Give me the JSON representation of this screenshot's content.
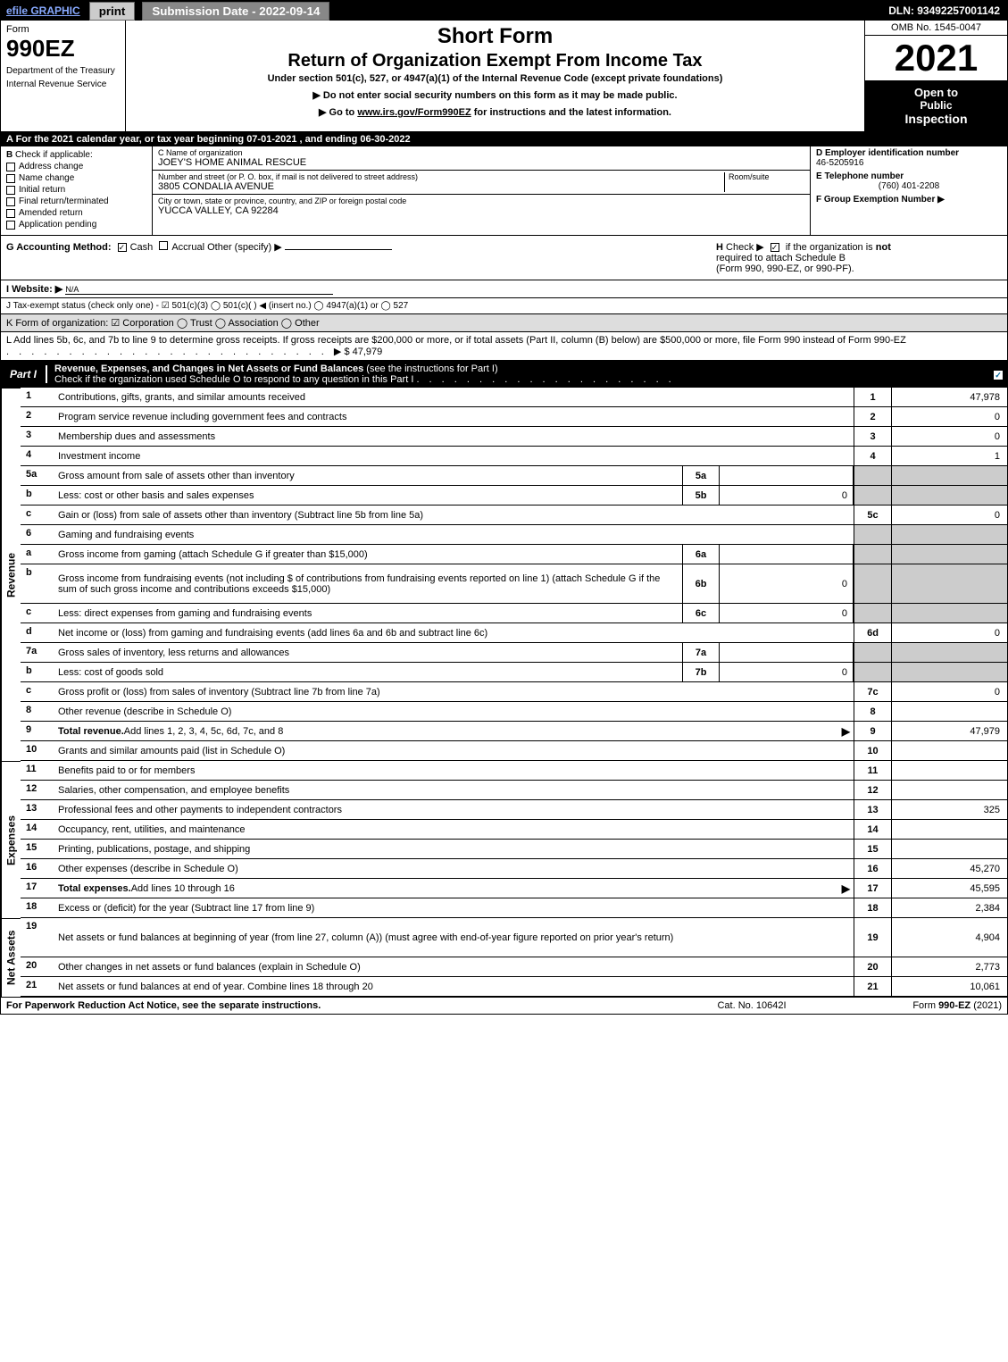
{
  "topbar": {
    "efile": "efile GRAPHIC",
    "print": "print",
    "submission": "Submission Date - 2022-09-14",
    "dln": "DLN: 93492257001142"
  },
  "header": {
    "form_label": "Form",
    "form_num": "990EZ",
    "dept1": "Department of the Treasury",
    "dept2": "Internal Revenue Service",
    "short_form": "Short Form",
    "title": "Return of Organization Exempt From Income Tax",
    "subtitle": "Under section 501(c), 527, or 4947(a)(1) of the Internal Revenue Code (except private foundations)",
    "instr1": "▶ Do not enter social security numbers on this form as it may be made public.",
    "instr2a": "▶ Go to ",
    "instr2_link": "www.irs.gov/Form990EZ",
    "instr2b": " for instructions and the latest information.",
    "omb": "OMB No. 1545-0047",
    "year": "2021",
    "open1": "Open to",
    "open2": "Public",
    "open3": "Inspection"
  },
  "section_a": "A  For the 2021 calendar year, or tax year beginning 07-01-2021 , and ending 06-30-2022",
  "section_b": {
    "label": "B",
    "check_label": "Check if applicable:",
    "items": [
      "Address change",
      "Name change",
      "Initial return",
      "Final return/terminated",
      "Amended return",
      "Application pending"
    ]
  },
  "section_c": {
    "name_label": "C Name of organization",
    "name": "JOEY'S HOME ANIMAL RESCUE",
    "street_label": "Number and street (or P. O. box, if mail is not delivered to street address)",
    "room_label": "Room/suite",
    "street": "3805 CONDALIA AVENUE",
    "city_label": "City or town, state or province, country, and ZIP or foreign postal code",
    "city": "YUCCA VALLEY, CA  92284"
  },
  "section_d": {
    "ein_label": "D Employer identification number",
    "ein": "46-5205916",
    "phone_label": "E Telephone number",
    "phone": "(760) 401-2208",
    "group_label": "F Group Exemption Number  ▶"
  },
  "section_g": {
    "prefix": "G Accounting Method:",
    "cash": "Cash",
    "accrual": "Accrual",
    "other": "Other (specify) ▶"
  },
  "section_h": {
    "prefix": "H",
    "text1": "Check ▶",
    "text2": "if the organization is",
    "text3": "not",
    "text4": "required to attach Schedule B",
    "text5": "(Form 990, 990-EZ, or 990-PF)."
  },
  "section_i": {
    "prefix": "I Website: ▶",
    "val": "N/A"
  },
  "section_j": "J Tax-exempt status (check only one) - ☑ 501(c)(3)  ◯ 501(c)(  ) ◀ (insert no.)  ◯ 4947(a)(1) or  ◯ 527",
  "section_k": "K Form of organization:  ☑ Corporation  ◯ Trust  ◯ Association  ◯ Other",
  "section_l": {
    "text": "L Add lines 5b, 6c, and 7b to line 9 to determine gross receipts. If gross receipts are $200,000 or more, or if total assets (Part II, column (B) below) are $500,000 or more, file Form 990 instead of Form 990-EZ",
    "val": "▶ $ 47,979"
  },
  "part1": {
    "label": "Part I",
    "title_bold": "Revenue, Expenses, and Changes in Net Assets or Fund Balances",
    "title_rest": " (see the instructions for Part I)",
    "check_text": "Check if the organization used Schedule O to respond to any question in this Part I"
  },
  "sidebar": {
    "revenue": "Revenue",
    "expenses": "Expenses",
    "netassets": "Net Assets"
  },
  "rows": [
    {
      "n": "1",
      "desc": "Contributions, gifts, grants, and similar amounts received",
      "rn": "1",
      "rv": "47,978"
    },
    {
      "n": "2",
      "desc": "Program service revenue including government fees and contracts",
      "rn": "2",
      "rv": "0"
    },
    {
      "n": "3",
      "desc": "Membership dues and assessments",
      "rn": "3",
      "rv": "0"
    },
    {
      "n": "4",
      "desc": "Investment income",
      "rn": "4",
      "rv": "1"
    },
    {
      "n": "5a",
      "desc": "Gross amount from sale of assets other than inventory",
      "sn": "5a",
      "sv": "",
      "shaded": true
    },
    {
      "n": "b",
      "desc": "Less: cost or other basis and sales expenses",
      "sn": "5b",
      "sv": "0",
      "shaded": true
    },
    {
      "n": "c",
      "desc": "Gain or (loss) from sale of assets other than inventory (Subtract line 5b from line 5a)",
      "rn": "5c",
      "rv": "0"
    },
    {
      "n": "6",
      "desc": "Gaming and fundraising events",
      "shaded_all": true
    },
    {
      "n": "a",
      "desc": "Gross income from gaming (attach Schedule G if greater than $15,000)",
      "sn": "6a",
      "sv": "",
      "shaded": true
    },
    {
      "n": "b",
      "desc": "Gross income from fundraising events (not including $                     of contributions from fundraising events reported on line 1) (attach Schedule G if the sum of such gross income and contributions exceeds $15,000)",
      "sn": "6b",
      "sv": "0",
      "shaded": true,
      "tall": true
    },
    {
      "n": "c",
      "desc": "Less: direct expenses from gaming and fundraising events",
      "sn": "6c",
      "sv": "0",
      "shaded": true
    },
    {
      "n": "d",
      "desc": "Net income or (loss) from gaming and fundraising events (add lines 6a and 6b and subtract line 6c)",
      "rn": "6d",
      "rv": "0"
    },
    {
      "n": "7a",
      "desc": "Gross sales of inventory, less returns and allowances",
      "sn": "7a",
      "sv": "",
      "shaded": true
    },
    {
      "n": "b",
      "desc": "Less: cost of goods sold",
      "sn": "7b",
      "sv": "0",
      "shaded": true
    },
    {
      "n": "c",
      "desc": "Gross profit or (loss) from sales of inventory (Subtract line 7b from line 7a)",
      "rn": "7c",
      "rv": "0"
    },
    {
      "n": "8",
      "desc": "Other revenue (describe in Schedule O)",
      "rn": "8",
      "rv": ""
    },
    {
      "n": "9",
      "desc": "Total revenue. Add lines 1, 2, 3, 4, 5c, 6d, 7c, and 8",
      "rn": "9",
      "rv": "47,979",
      "arrow": true,
      "bold": true
    }
  ],
  "expense_rows": [
    {
      "n": "10",
      "desc": "Grants and similar amounts paid (list in Schedule O)",
      "rn": "10",
      "rv": ""
    },
    {
      "n": "11",
      "desc": "Benefits paid to or for members",
      "rn": "11",
      "rv": ""
    },
    {
      "n": "12",
      "desc": "Salaries, other compensation, and employee benefits",
      "rn": "12",
      "rv": ""
    },
    {
      "n": "13",
      "desc": "Professional fees and other payments to independent contractors",
      "rn": "13",
      "rv": "325"
    },
    {
      "n": "14",
      "desc": "Occupancy, rent, utilities, and maintenance",
      "rn": "14",
      "rv": ""
    },
    {
      "n": "15",
      "desc": "Printing, publications, postage, and shipping",
      "rn": "15",
      "rv": ""
    },
    {
      "n": "16",
      "desc": "Other expenses (describe in Schedule O)",
      "rn": "16",
      "rv": "45,270"
    },
    {
      "n": "17",
      "desc": "Total expenses. Add lines 10 through 16",
      "rn": "17",
      "rv": "45,595",
      "arrow": true,
      "bold": true
    }
  ],
  "netasset_rows": [
    {
      "n": "18",
      "desc": "Excess or (deficit) for the year (Subtract line 17 from line 9)",
      "rn": "18",
      "rv": "2,384"
    },
    {
      "n": "19",
      "desc": "Net assets or fund balances at beginning of year (from line 27, column (A)) (must agree with end-of-year figure reported on prior year's return)",
      "rn": "19",
      "rv": "4,904",
      "tall": true
    },
    {
      "n": "20",
      "desc": "Other changes in net assets or fund balances (explain in Schedule O)",
      "rn": "20",
      "rv": "2,773"
    },
    {
      "n": "21",
      "desc": "Net assets or fund balances at end of year. Combine lines 18 through 20",
      "rn": "21",
      "rv": "10,061"
    }
  ],
  "footer": {
    "left": "For Paperwork Reduction Act Notice, see the separate instructions.",
    "center": "Cat. No. 10642I",
    "right_a": "Form ",
    "right_b": "990-EZ",
    "right_c": " (2021)"
  }
}
